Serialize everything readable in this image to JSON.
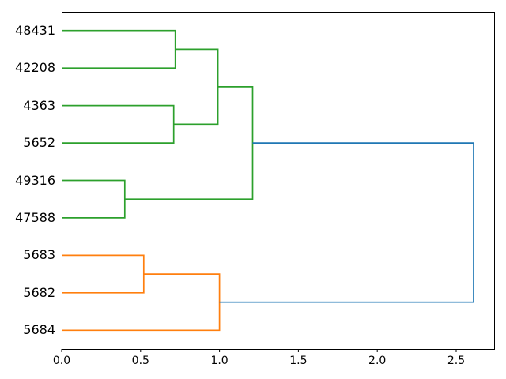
{
  "figure": {
    "background": "#ffffff",
    "axis_color": "#000000"
  },
  "chart_data": {
    "type": "dendrogram",
    "orientation": "right",
    "leaf_labels": [
      "48431",
      "42208",
      "4363",
      "5652",
      "49316",
      "47588",
      "5683",
      "5682",
      "5684"
    ],
    "links": [
      {
        "left": 0,
        "right": 1,
        "distance": 0.72,
        "color_key": "green"
      },
      {
        "left": 2,
        "right": 3,
        "distance": 0.71,
        "color_key": "green"
      },
      {
        "left": 9,
        "right": 10,
        "distance": 0.99,
        "color_key": "green"
      },
      {
        "left": 4,
        "right": 5,
        "distance": 0.4,
        "color_key": "green"
      },
      {
        "left": 11,
        "right": 12,
        "distance": 1.21,
        "color_key": "green"
      },
      {
        "left": 6,
        "right": 7,
        "distance": 0.52,
        "color_key": "orange"
      },
      {
        "left": 14,
        "right": 8,
        "distance": 1.0,
        "color_key": "orange"
      },
      {
        "left": 13,
        "right": 15,
        "distance": 2.61,
        "color_key": "blue"
      }
    ],
    "colors": {
      "green": "#2ca02c",
      "orange": "#ff7f0e",
      "blue": "#1f77b4"
    },
    "xticks": [
      {
        "label": "0.0",
        "value": 0.0
      },
      {
        "label": "0.5",
        "value": 0.5
      },
      {
        "label": "1.0",
        "value": 1.0
      },
      {
        "label": "1.5",
        "value": 1.5
      },
      {
        "label": "2.0",
        "value": 2.0
      },
      {
        "label": "2.5",
        "value": 2.5
      }
    ],
    "xlim": [
      0,
      2.7405
    ],
    "grid": false,
    "legend": null
  }
}
